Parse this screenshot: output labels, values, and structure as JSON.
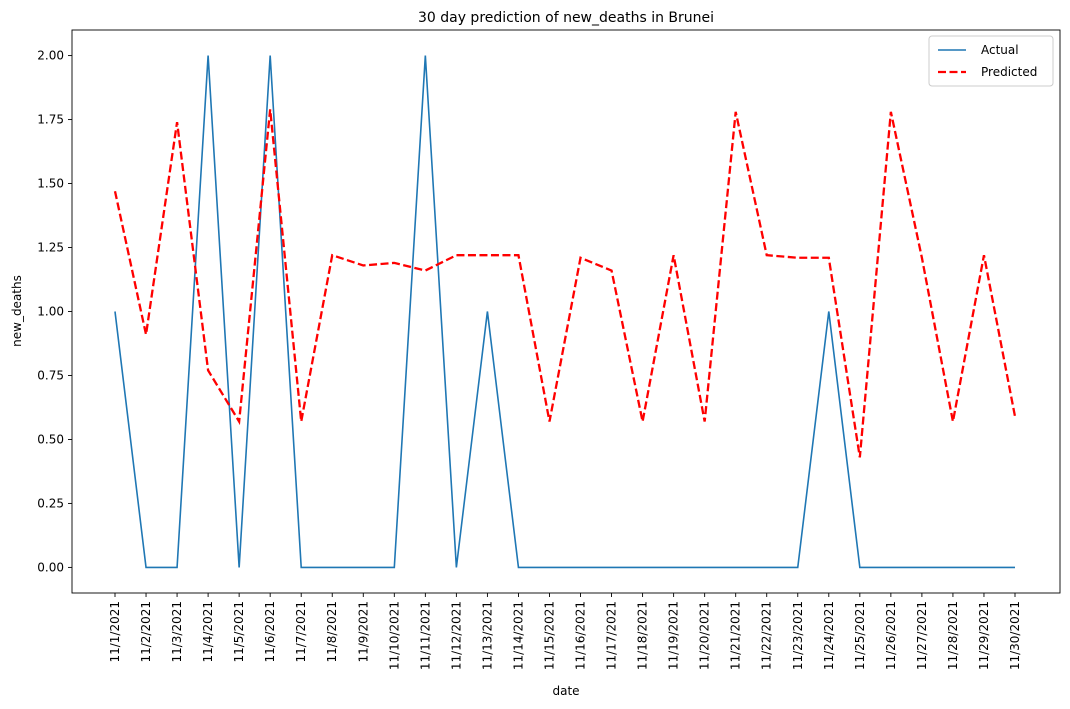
{
  "chart_data": {
    "type": "line",
    "title": "30 day prediction of new_deaths in Brunei",
    "xlabel": "date",
    "ylabel": "new_deaths",
    "categories": [
      "11/1/2021",
      "11/2/2021",
      "11/3/2021",
      "11/4/2021",
      "11/5/2021",
      "11/6/2021",
      "11/7/2021",
      "11/8/2021",
      "11/9/2021",
      "11/10/2021",
      "11/11/2021",
      "11/12/2021",
      "11/13/2021",
      "11/14/2021",
      "11/15/2021",
      "11/16/2021",
      "11/17/2021",
      "11/18/2021",
      "11/19/2021",
      "11/20/2021",
      "11/21/2021",
      "11/22/2021",
      "11/23/2021",
      "11/24/2021",
      "11/25/2021",
      "11/26/2021",
      "11/27/2021",
      "11/28/2021",
      "11/29/2021",
      "11/30/2021"
    ],
    "series": [
      {
        "name": "Actual",
        "color": "#1f77b4",
        "style": "solid",
        "values": [
          1,
          0,
          0,
          2,
          0,
          2,
          0,
          0,
          0,
          0,
          2,
          0,
          1,
          0,
          0,
          0,
          0,
          0,
          0,
          0,
          0,
          0,
          0,
          1,
          0,
          0,
          0,
          0,
          0,
          0
        ]
      },
      {
        "name": "Predicted",
        "color": "#ff0000",
        "style": "dashed",
        "values": [
          1.47,
          0.91,
          1.74,
          0.77,
          0.57,
          1.79,
          0.57,
          1.22,
          1.18,
          1.19,
          1.16,
          1.22,
          1.22,
          1.22,
          0.57,
          1.21,
          1.16,
          0.57,
          1.22,
          0.57,
          1.78,
          1.22,
          1.21,
          1.21,
          0.43,
          1.78,
          1.21,
          0.57,
          1.22,
          0.59
        ]
      }
    ],
    "yticks": [
      "0.00",
      "0.25",
      "0.50",
      "0.75",
      "1.00",
      "1.25",
      "1.50",
      "1.75",
      "2.00"
    ],
    "ylim": [
      -0.1,
      2.1
    ],
    "grid": false,
    "legend_position": "top-right"
  }
}
